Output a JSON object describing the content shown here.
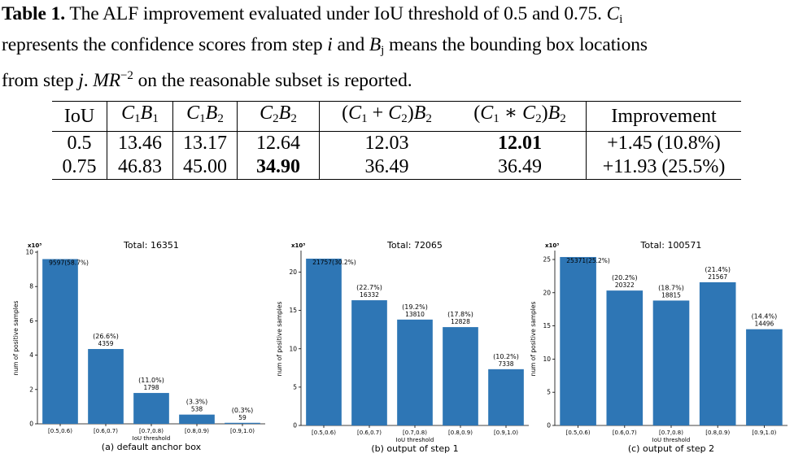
{
  "caption": {
    "label": "Table 1.",
    "text_1": " The ALF improvement evaluated under IoU threshold of 0.5 and 0.75. ",
    "text_2": "represents the confidence scores from step ",
    "text_3": " and ",
    "text_4": " means the bounding box locations",
    "text_5": "from step ",
    "text_6": ". ",
    "text_7": " on the reasonable subset is reported.",
    "sym_C": "C",
    "sym_B": "B",
    "sym_i": "i",
    "sym_j": "j",
    "sym_MR": "MR",
    "sym_exp": "−2"
  },
  "table": {
    "headers": [
      {
        "id": "iou",
        "text": "IoU"
      },
      {
        "id": "c1b1",
        "a": "C",
        "as": "1",
        "b": "B",
        "bs": "1"
      },
      {
        "id": "c1b2",
        "a": "C",
        "as": "1",
        "b": "B",
        "bs": "2"
      },
      {
        "id": "c2b2",
        "a": "C",
        "as": "2",
        "b": "B",
        "bs": "2"
      },
      {
        "id": "sum",
        "op": "+"
      },
      {
        "id": "prod",
        "op": "∗"
      },
      {
        "id": "imp",
        "text": "Improvement"
      }
    ],
    "rows": [
      {
        "iou": "0.5",
        "c1b1": "13.46",
        "c1b2": "13.17",
        "c2b2": "12.64",
        "sum": "12.03",
        "prod": "12.01",
        "imp": "+1.45 (10.8%)",
        "best": "prod"
      },
      {
        "iou": "0.75",
        "c1b1": "46.83",
        "c1b2": "45.00",
        "c2b2": "34.90",
        "sum": "36.49",
        "prod": "36.49",
        "imp": "+11.93 (25.5%)",
        "best": "c2b2"
      }
    ]
  },
  "chart_data": [
    {
      "type": "bar",
      "title": "Total: 16351",
      "subtitle": "(a) default anchor box",
      "xlabel": "IoU threshold",
      "ylabel": "num of positive samples",
      "y_multiplier": "x10³",
      "categories": [
        "[0.5,0.6)",
        "[0.6,0.7)",
        "[0.7,0.8)",
        "[0.8,0.9)",
        "[0.9,1.0)"
      ],
      "values": [
        9597,
        4359,
        1798,
        538,
        59
      ],
      "percent": [
        "58.7%",
        "26.6%",
        "11.0%",
        "3.3%",
        "0.3%"
      ],
      "ylim": [
        0,
        10
      ],
      "yticks": [
        0,
        2,
        4,
        6,
        8,
        10
      ],
      "bar_color": "#2e76b5",
      "label_style": [
        "inline",
        "stacked",
        "stacked",
        "stacked",
        "stacked"
      ]
    },
    {
      "type": "bar",
      "title": "Total: 72065",
      "subtitle": "(b) output of step 1",
      "xlabel": "IoU threshold",
      "ylabel": "num of positive samples",
      "y_multiplier": "x10³",
      "categories": [
        "[0.5,0.6)",
        "[0.6,0.7)",
        "[0.7,0.8)",
        "[0.8,0.9)",
        "[0.9,1.0)"
      ],
      "values": [
        21757,
        16332,
        13810,
        12828,
        7338
      ],
      "percent": [
        "30.2%",
        "22.7%",
        "19.2%",
        "17.8%",
        "10.2%"
      ],
      "ylim": [
        0,
        22.6
      ],
      "yticks": [
        0,
        5,
        10,
        15,
        20
      ],
      "bar_color": "#2e76b5",
      "label_style": [
        "inline",
        "stacked",
        "stacked",
        "stacked",
        "stacked"
      ]
    },
    {
      "type": "bar",
      "title": "Total: 100571",
      "subtitle": "(c) output of step 2",
      "xlabel": "IoU threshold",
      "ylabel": "num of positive samples",
      "y_multiplier": "x10³",
      "categories": [
        "[0.5,0.6)",
        "[0.6,0.7)",
        "[0.7,0.8)",
        "[0.8,0.9)",
        "[0.9,1.0)"
      ],
      "values": [
        25371,
        20322,
        18815,
        21567,
        14496
      ],
      "percent": [
        "25.2%",
        "20.2%",
        "18.7%",
        "21.4%",
        "14.4%"
      ],
      "ylim": [
        0,
        26.1
      ],
      "yticks": [
        0,
        5,
        10,
        15,
        20,
        25
      ],
      "bar_color": "#2e76b5",
      "label_style": [
        "inline",
        "stacked",
        "stacked",
        "stacked",
        "stacked"
      ]
    }
  ]
}
